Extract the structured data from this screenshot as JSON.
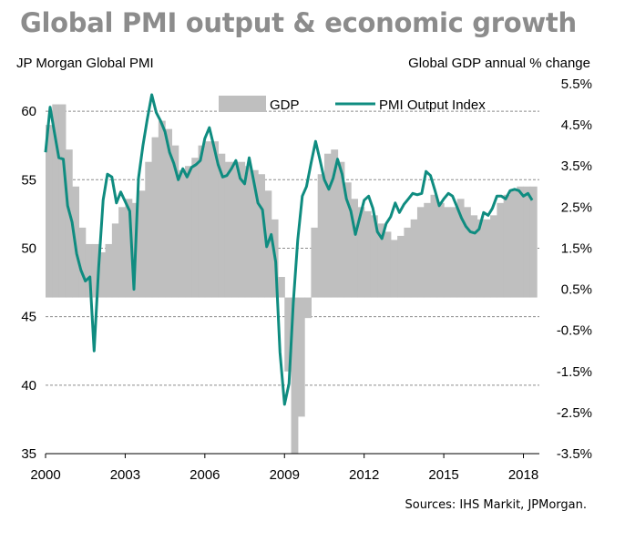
{
  "title": "Global PMI output & economic growth",
  "left_axis_title": "JP Morgan Global  PMI",
  "right_axis_title": "Global  GDP annual % change",
  "source": "Sources: IHS Markit, JPMorgan.",
  "colors": {
    "gdp": "#bfbfbf",
    "pmi": "#0f8c80",
    "grid": "#8c8c8c",
    "title": "#8c8c8c"
  },
  "chart_data": {
    "type": "bar+line",
    "title": "Global PMI output & economic growth",
    "legend": [
      "GDP",
      "PMI Output Index"
    ],
    "legend_position": "top",
    "grid": true,
    "x_ticks": [
      "2000",
      "2003",
      "2006",
      "2009",
      "2012",
      "2015",
      "2018"
    ],
    "left_axis": {
      "label": "JP Morgan Global  PMI",
      "ylim": [
        35,
        62
      ],
      "ticks": [
        "35",
        "40",
        "45",
        "50",
        "55",
        "60"
      ]
    },
    "right_axis": {
      "label": "Global  GDP annual % change",
      "ylim": [
        -3.5,
        5.5
      ],
      "ticks": [
        "-3.5%",
        "-2.5%",
        "-1.5%",
        "-0.5%",
        "0.5%",
        "1.5%",
        "2.5%",
        "3.5%",
        "4.5%",
        "5.5%"
      ]
    },
    "series": [
      {
        "name": "GDP",
        "type": "bar",
        "axis": "right",
        "x": [
          2000.0,
          2000.25,
          2000.5,
          2000.75,
          2001.0,
          2001.25,
          2001.5,
          2001.75,
          2002.0,
          2002.25,
          2002.5,
          2002.75,
          2003.0,
          2003.25,
          2003.5,
          2003.75,
          2004.0,
          2004.25,
          2004.5,
          2004.75,
          2005.0,
          2005.25,
          2005.5,
          2005.75,
          2006.0,
          2006.25,
          2006.5,
          2006.75,
          2007.0,
          2007.25,
          2007.5,
          2007.75,
          2008.0,
          2008.25,
          2008.5,
          2008.75,
          2009.0,
          2009.25,
          2009.5,
          2009.75,
          2010.0,
          2010.25,
          2010.5,
          2010.75,
          2011.0,
          2011.25,
          2011.5,
          2011.75,
          2012.0,
          2012.25,
          2012.5,
          2012.75,
          2013.0,
          2013.25,
          2013.5,
          2013.75,
          2014.0,
          2014.25,
          2014.5,
          2014.75,
          2015.0,
          2015.25,
          2015.5,
          2015.75,
          2016.0,
          2016.25,
          2016.5,
          2016.75,
          2017.0,
          2017.25,
          2017.5,
          2017.75,
          2018.0,
          2018.25
        ],
        "values": [
          4.5,
          5.0,
          5.0,
          3.9,
          3.0,
          2.0,
          1.6,
          1.6,
          1.4,
          1.6,
          2.1,
          2.5,
          2.7,
          2.6,
          2.9,
          3.6,
          4.2,
          4.6,
          4.4,
          4.0,
          3.4,
          3.5,
          3.7,
          4.0,
          4.1,
          4.1,
          3.8,
          3.6,
          3.6,
          3.6,
          3.5,
          3.4,
          3.3,
          2.9,
          2.2,
          0.8,
          -1.5,
          -3.5,
          -2.6,
          -0.2,
          2.0,
          3.3,
          3.8,
          3.9,
          3.6,
          3.1,
          2.7,
          2.5,
          2.4,
          2.3,
          2.1,
          1.9,
          1.7,
          1.8,
          2.0,
          2.2,
          2.5,
          2.6,
          2.8,
          2.6,
          2.5,
          2.5,
          2.7,
          2.5,
          2.3,
          2.2,
          2.2,
          2.3,
          2.6,
          2.8,
          2.9,
          3.0,
          3.0,
          3.0
        ]
      },
      {
        "name": "PMI Output Index",
        "type": "line",
        "axis": "left",
        "x": [
          2000.0,
          2000.17,
          2000.33,
          2000.5,
          2000.67,
          2000.83,
          2001.0,
          2001.17,
          2001.33,
          2001.5,
          2001.67,
          2001.83,
          2002.0,
          2002.17,
          2002.33,
          2002.5,
          2002.67,
          2002.83,
          2003.0,
          2003.17,
          2003.33,
          2003.5,
          2003.67,
          2003.83,
          2004.0,
          2004.17,
          2004.33,
          2004.5,
          2004.67,
          2004.83,
          2005.0,
          2005.17,
          2005.33,
          2005.5,
          2005.67,
          2005.83,
          2006.0,
          2006.17,
          2006.33,
          2006.5,
          2006.67,
          2006.83,
          2007.0,
          2007.17,
          2007.33,
          2007.5,
          2007.67,
          2007.83,
          2008.0,
          2008.17,
          2008.33,
          2008.5,
          2008.67,
          2008.83,
          2009.0,
          2009.17,
          2009.33,
          2009.5,
          2009.67,
          2009.83,
          2010.0,
          2010.17,
          2010.33,
          2010.5,
          2010.67,
          2010.83,
          2011.0,
          2011.17,
          2011.33,
          2011.5,
          2011.67,
          2011.83,
          2012.0,
          2012.17,
          2012.33,
          2012.5,
          2012.67,
          2012.83,
          2013.0,
          2013.17,
          2013.33,
          2013.5,
          2013.67,
          2013.83,
          2014.0,
          2014.17,
          2014.33,
          2014.5,
          2014.67,
          2014.83,
          2015.0,
          2015.17,
          2015.33,
          2015.5,
          2015.67,
          2015.83,
          2016.0,
          2016.17,
          2016.33,
          2016.5,
          2016.67,
          2016.83,
          2017.0,
          2017.17,
          2017.33,
          2017.5,
          2017.67,
          2017.83,
          2018.0,
          2018.17,
          2018.33
        ],
        "values": [
          57.0,
          60.3,
          58.5,
          56.6,
          56.5,
          53.1,
          51.9,
          49.6,
          48.4,
          47.6,
          47.9,
          42.5,
          48.6,
          53.5,
          55.4,
          55.2,
          53.3,
          54.1,
          53.4,
          52.7,
          47.0,
          55.1,
          57.5,
          59.4,
          61.2,
          59.9,
          59.3,
          58.5,
          57.0,
          56.2,
          55.0,
          55.8,
          55.2,
          55.9,
          56.1,
          56.4,
          58.0,
          58.8,
          57.5,
          56.1,
          55.2,
          55.3,
          55.8,
          56.4,
          55.1,
          54.7,
          56.6,
          55.0,
          53.3,
          52.8,
          50.1,
          51.0,
          49.0,
          42.4,
          38.6,
          40.1,
          46.0,
          50.6,
          53.8,
          54.5,
          56.2,
          57.8,
          56.5,
          55.0,
          54.3,
          55.1,
          56.5,
          55.4,
          53.6,
          52.7,
          51.0,
          52.2,
          53.5,
          53.8,
          52.9,
          51.2,
          50.7,
          51.8,
          52.3,
          53.3,
          52.6,
          53.2,
          53.6,
          54.0,
          53.9,
          54.0,
          55.6,
          55.3,
          54.2,
          53.1,
          53.6,
          54.0,
          53.8,
          53.0,
          52.2,
          51.6,
          51.2,
          51.1,
          51.4,
          52.6,
          52.4,
          52.9,
          53.8,
          53.8,
          53.6,
          54.2,
          54.3,
          54.2,
          53.8,
          54.0,
          53.5
        ]
      }
    ]
  }
}
